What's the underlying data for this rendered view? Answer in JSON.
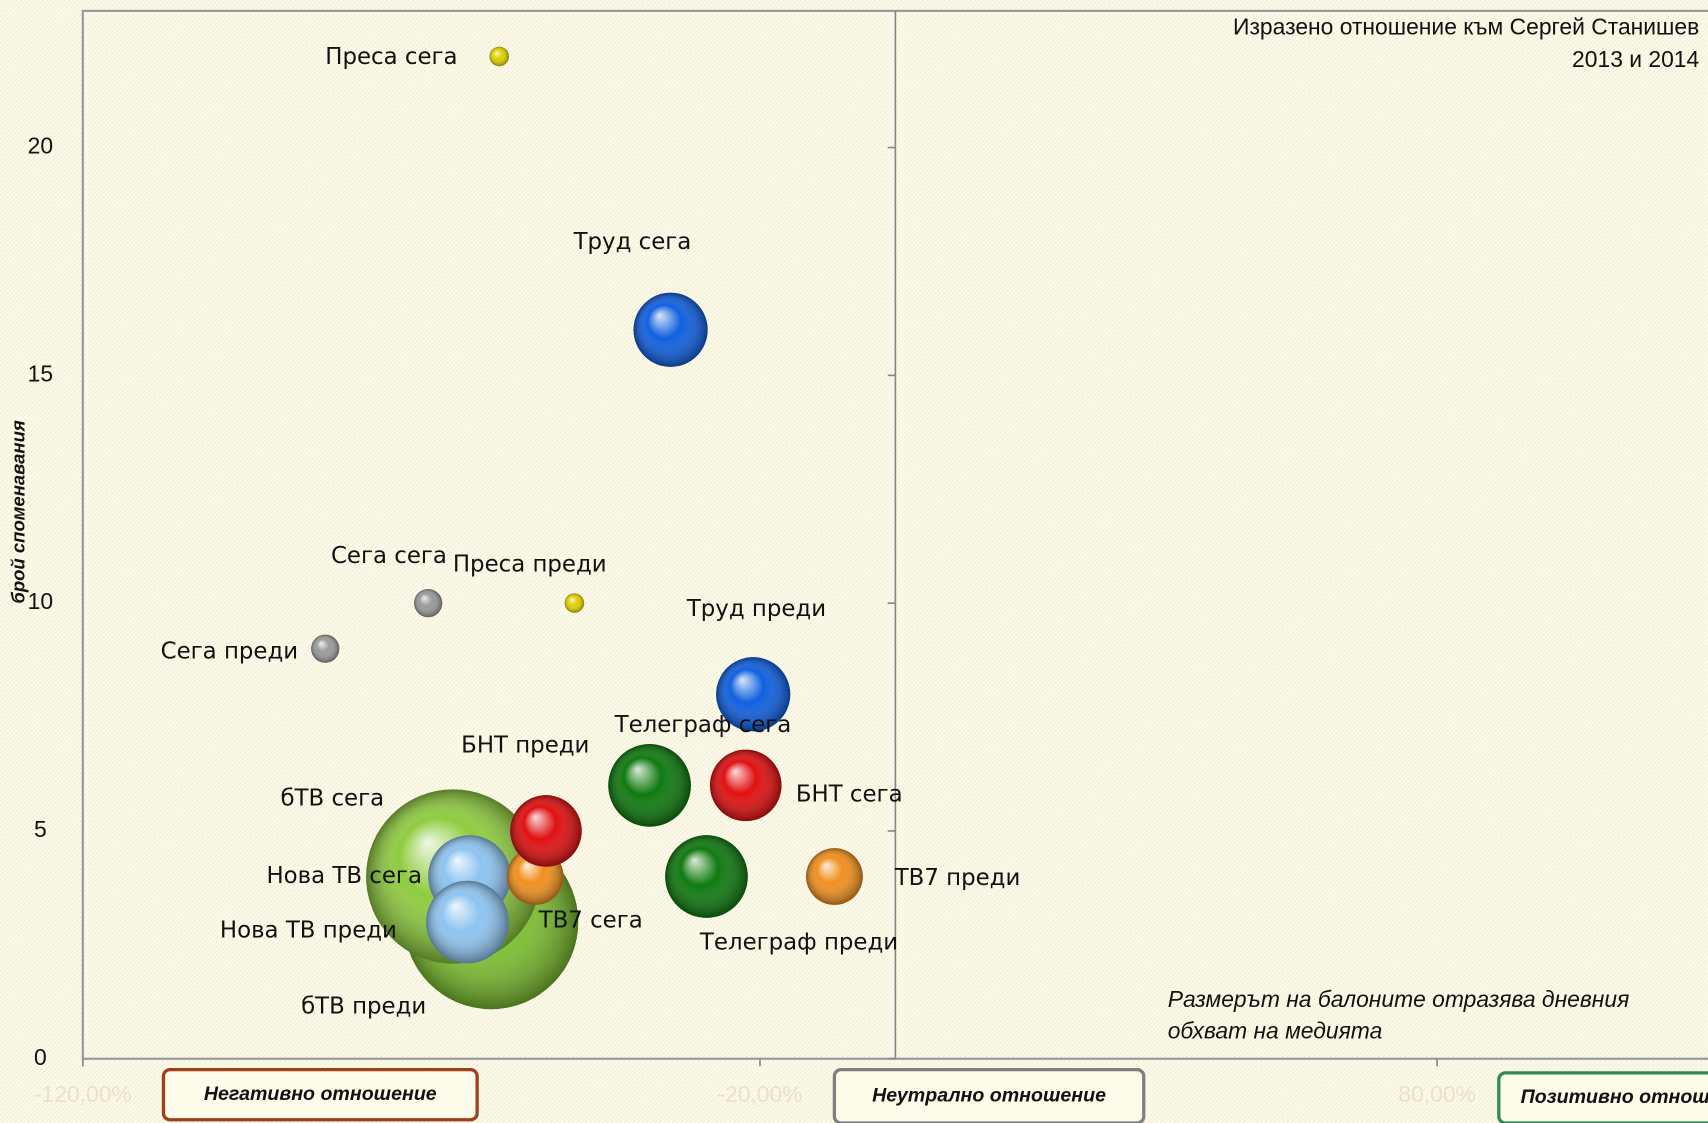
{
  "chart_data": {
    "type": "bubble",
    "title": [
      "Изразено отношение към Сергей Станишев",
      "2013 и 2014"
    ],
    "ylabel": "брой споменавания",
    "note": [
      "Размерът на балоните отразява дневния",
      "обхват на медията"
    ],
    "zones": [
      {
        "label": "Негативно отношение",
        "color": "#a0401a"
      },
      {
        "label": "Неутрално отношение",
        "color": "#7f7f7f"
      },
      {
        "label": "Позитивно отношение",
        "color": "#2e8b57"
      }
    ],
    "xlim": [
      -120,
      120
    ],
    "xticks": [
      {
        "value": -120,
        "label": "-120,00%"
      },
      {
        "value": -20,
        "label": "-20,00%"
      },
      {
        "value": 80,
        "label": "80,00%"
      }
    ],
    "ylim": [
      0,
      23
    ],
    "yticks": [
      0,
      5,
      10,
      15,
      20
    ],
    "points": [
      {
        "name": "бТВ преди",
        "color": "#7cc030",
        "x": -59.7,
        "y": 3,
        "size": 1600
      },
      {
        "name": "бТВ сега",
        "color": "#8fcc40",
        "x": -65.3,
        "y": 4,
        "size": 1600
      },
      {
        "name": "Нова ТВ сега",
        "color": "#8ec4f0",
        "x": -62.9,
        "y": 4,
        "size": 360
      },
      {
        "name": "Нова ТВ преди",
        "color": "#8ec4f0",
        "x": -63.2,
        "y": 3,
        "size": 360
      },
      {
        "name": "ТВ7 сега",
        "color": "#f0901e",
        "x": -53.2,
        "y": 4,
        "size": 170
      },
      {
        "name": "БНТ преди",
        "color": "#e01010",
        "x": -51.6,
        "y": 5,
        "size": 270
      },
      {
        "name": "Телеграф сега",
        "color": "#0f7a0f",
        "x": -36.3,
        "y": 6,
        "size": 360
      },
      {
        "name": "БНТ сега",
        "color": "#e01010",
        "x": -22.1,
        "y": 6,
        "size": 270
      },
      {
        "name": "Телеграф преди",
        "color": "#0f7a0f",
        "x": -27.9,
        "y": 4,
        "size": 360
      },
      {
        "name": "ТВ7 преди",
        "color": "#f0901e",
        "x": -9.0,
        "y": 4,
        "size": 170
      },
      {
        "name": "Труд преди",
        "color": "#1060e0",
        "x": -21.0,
        "y": 8,
        "size": 290
      },
      {
        "name": "Труд сега",
        "color": "#1060e0",
        "x": -33.2,
        "y": 16,
        "size": 290
      },
      {
        "name": "Сега сега",
        "color": "#9a9a9a",
        "x": -69.0,
        "y": 10,
        "size": 42
      },
      {
        "name": "Сега преди",
        "color": "#9a9a9a",
        "x": -84.2,
        "y": 9,
        "size": 42
      },
      {
        "name": "Преса преди",
        "color": "#e0d000",
        "x": -47.4,
        "y": 10,
        "size": 20
      },
      {
        "name": "Преса сега",
        "color": "#e0d000",
        "x": -58.5,
        "y": 22,
        "size": 20
      }
    ]
  }
}
